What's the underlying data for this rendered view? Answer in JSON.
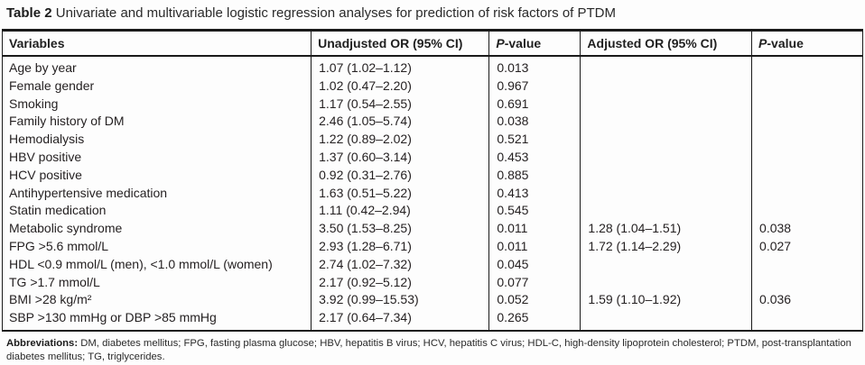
{
  "caption": {
    "label": "Table 2",
    "text": " Univariate and multivariable logistic regression analyses for prediction of risk factors of PTDM"
  },
  "table": {
    "headers": {
      "variables": "Variables",
      "unadjusted": "Unadjusted OR (95% CI)",
      "p1_italic": "P",
      "p1_rest": "-value",
      "adjusted": "Adjusted OR (95% CI)",
      "p2_italic": "P",
      "p2_rest": "-value"
    },
    "rows": [
      [
        "Age by year",
        "1.07 (1.02–1.12)",
        "0.013",
        "",
        ""
      ],
      [
        "Female gender",
        "1.02 (0.47–2.20)",
        "0.967",
        "",
        ""
      ],
      [
        "Smoking",
        "1.17 (0.54–2.55)",
        "0.691",
        "",
        ""
      ],
      [
        "Family history of DM",
        "2.46 (1.05–5.74)",
        "0.038",
        "",
        ""
      ],
      [
        "Hemodialysis",
        "1.22 (0.89–2.02)",
        "0.521",
        "",
        ""
      ],
      [
        "HBV positive",
        "1.37 (0.60–3.14)",
        "0.453",
        "",
        ""
      ],
      [
        "HCV positive",
        "0.92 (0.31–2.76)",
        "0.885",
        "",
        ""
      ],
      [
        "Antihypertensive medication",
        "1.63 (0.51–5.22)",
        "0.413",
        "",
        ""
      ],
      [
        "Statin medication",
        "1.11 (0.42–2.94)",
        "0.545",
        "",
        ""
      ],
      [
        "Metabolic syndrome",
        "3.50 (1.53–8.25)",
        "0.011",
        "1.28 (1.04–1.51)",
        "0.038"
      ],
      [
        "FPG >5.6 mmol/L",
        "2.93 (1.28–6.71)",
        "0.011",
        "1.72 (1.14–2.29)",
        "0.027"
      ],
      [
        "HDL <0.9 mmol/L (men), <1.0 mmol/L (women)",
        "2.74 (1.02–7.32)",
        "0.045",
        "",
        ""
      ],
      [
        "TG >1.7 mmol/L",
        "2.17 (0.92–5.12)",
        "0.077",
        "",
        ""
      ],
      [
        "BMI >28 kg/m²",
        "3.92 (0.99–15.53)",
        "0.052",
        "1.59 (1.10–1.92)",
        "0.036"
      ],
      [
        "SBP >130 mmHg or DBP >85 mmHg",
        "2.17 (0.64–7.34)",
        "0.265",
        "",
        ""
      ]
    ]
  },
  "footnote": {
    "label": "Abbreviations:",
    "text": " DM, diabetes mellitus; FPG, fasting plasma glucose; HBV, hepatitis B virus; HCV, hepatitis C virus; HDL-C, high-density lipoprotein cholesterol; PTDM, post-transplantation diabetes mellitus; TG, triglycerides."
  }
}
